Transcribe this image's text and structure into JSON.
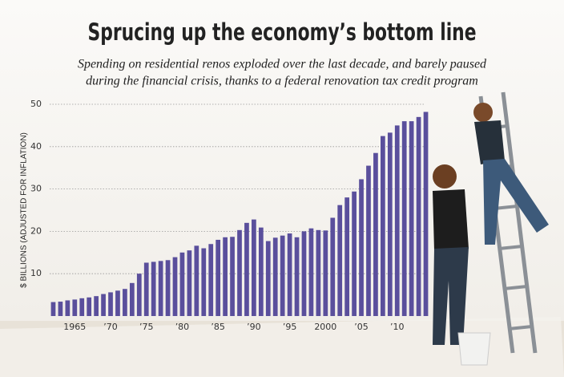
{
  "chart_data": {
    "type": "bar",
    "title": "Sprucing up the economy’s bottom line",
    "subtitle": [
      "Spending on residential renos exploded over the last decade, and barely paused",
      "during the financial crisis, thanks to a federal renovation tax credit program"
    ],
    "y_label": "$ BILLIONS (ADJUSTED FOR INFLATION)",
    "categories": [
      null,
      null,
      null,
      "1965",
      null,
      null,
      null,
      null,
      "’70",
      null,
      null,
      null,
      null,
      "’75",
      null,
      null,
      null,
      null,
      "’80",
      null,
      null,
      null,
      null,
      "’85",
      null,
      null,
      null,
      null,
      "’90",
      null,
      null,
      null,
      null,
      "’95",
      null,
      null,
      null,
      null,
      "2000",
      null,
      null,
      null,
      null,
      "’05",
      null,
      null,
      null,
      null,
      "’10",
      null,
      null,
      null,
      null
    ],
    "values": [
      3.3,
      3.4,
      3.7,
      3.9,
      4.2,
      4.4,
      4.7,
      5.2,
      5.6,
      6.0,
      6.4,
      7.8,
      10,
      12.6,
      12.8,
      13,
      13.2,
      13.9,
      15,
      15.5,
      16.6,
      16,
      17,
      18,
      18.6,
      18.7,
      20.3,
      22,
      22.8,
      20.9,
      17.7,
      18.5,
      19,
      19.5,
      18.6,
      20,
      20.7,
      20.3,
      20.2,
      23.2,
      26.2,
      28,
      29.4,
      32.3,
      35.5,
      38.5,
      42.5,
      43.3,
      45,
      46,
      46,
      47,
      48.2
    ],
    "color": "#5a4f9c",
    "ylim": [
      0,
      50
    ],
    "yticks": [
      10,
      20,
      30,
      40,
      50
    ],
    "grid": true
  }
}
